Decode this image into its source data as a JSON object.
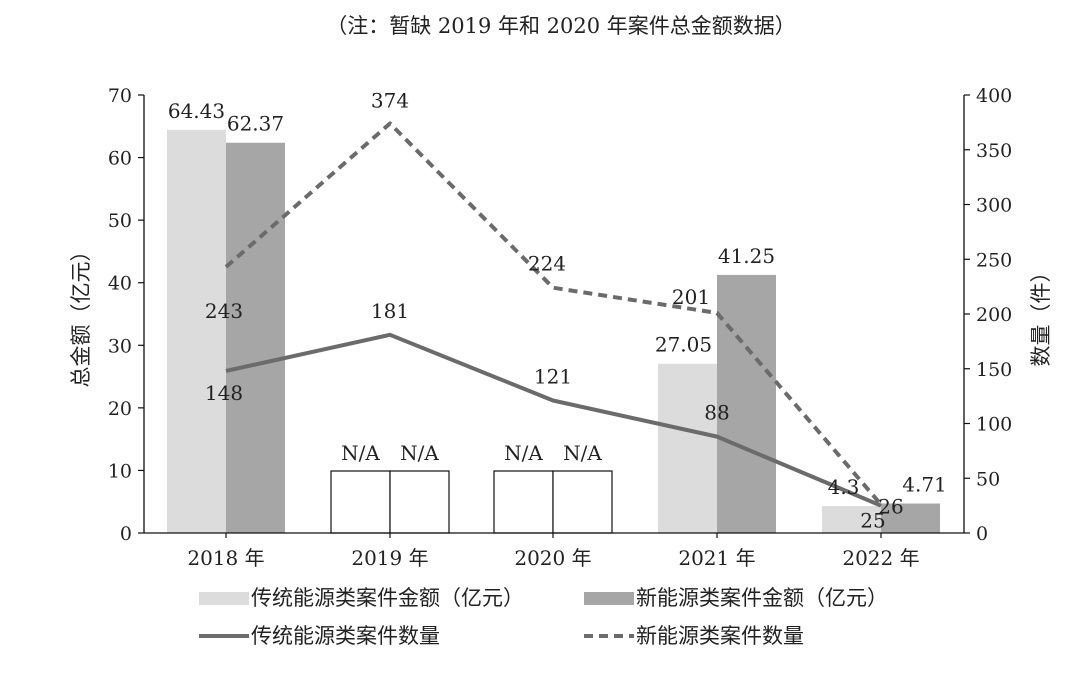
{
  "note": "（注：暂缺 2019 年和 2020 年案件总金额数据）",
  "chart_data": {
    "type": "bar",
    "categories": [
      "2018 年",
      "2019 年",
      "2020 年",
      "2021 年",
      "2022 年"
    ],
    "ylabel_left": "总金额（亿元）",
    "ylabel_right": "数量（件）",
    "ylim_left": [
      0,
      70
    ],
    "yticks_left": [
      0,
      10,
      20,
      30,
      40,
      50,
      60,
      70
    ],
    "ylim_right": [
      0,
      400
    ],
    "yticks_right": [
      0,
      50,
      100,
      150,
      200,
      250,
      300,
      350,
      400
    ],
    "missing_label": "N/A",
    "bars": [
      {
        "name": "传统能源类案件金额（亿元）",
        "color": "#dcdcdc",
        "axis": "left",
        "values": [
          64.43,
          null,
          null,
          27.05,
          4.3
        ],
        "labels": [
          "64.43",
          "N/A",
          "N/A",
          "27.05",
          "4.3"
        ]
      },
      {
        "name": "新能源类案件金额（亿元）",
        "color": "#a6a6a6",
        "axis": "left",
        "values": [
          62.37,
          null,
          null,
          41.25,
          4.71
        ],
        "labels": [
          "62.37",
          "N/A",
          "N/A",
          "41.25",
          "4.71"
        ]
      }
    ],
    "lines": [
      {
        "name": "传统能源类案件数量",
        "color": "#6b6b6b",
        "style": "solid",
        "axis": "right",
        "values": [
          148,
          181,
          121,
          88,
          25
        ],
        "labels": [
          "148",
          "181",
          "121",
          "88",
          "25"
        ]
      },
      {
        "name": "新能源类案件数量",
        "color": "#6b6b6b",
        "style": "dashed",
        "axis": "right",
        "values": [
          243,
          374,
          224,
          201,
          26
        ],
        "labels": [
          "243",
          "374",
          "224",
          "201",
          "26"
        ]
      }
    ],
    "legend": [
      {
        "label": "传统能源类案件金额（亿元）",
        "kind": "bar",
        "color": "#dcdcdc"
      },
      {
        "label": "新能源类案件金额（亿元）",
        "kind": "bar",
        "color": "#a6a6a6"
      },
      {
        "label": "传统能源类案件数量",
        "kind": "line",
        "style": "solid",
        "color": "#6b6b6b"
      },
      {
        "label": "新能源类案件数量",
        "kind": "line",
        "style": "dashed",
        "color": "#6b6b6b"
      }
    ]
  }
}
